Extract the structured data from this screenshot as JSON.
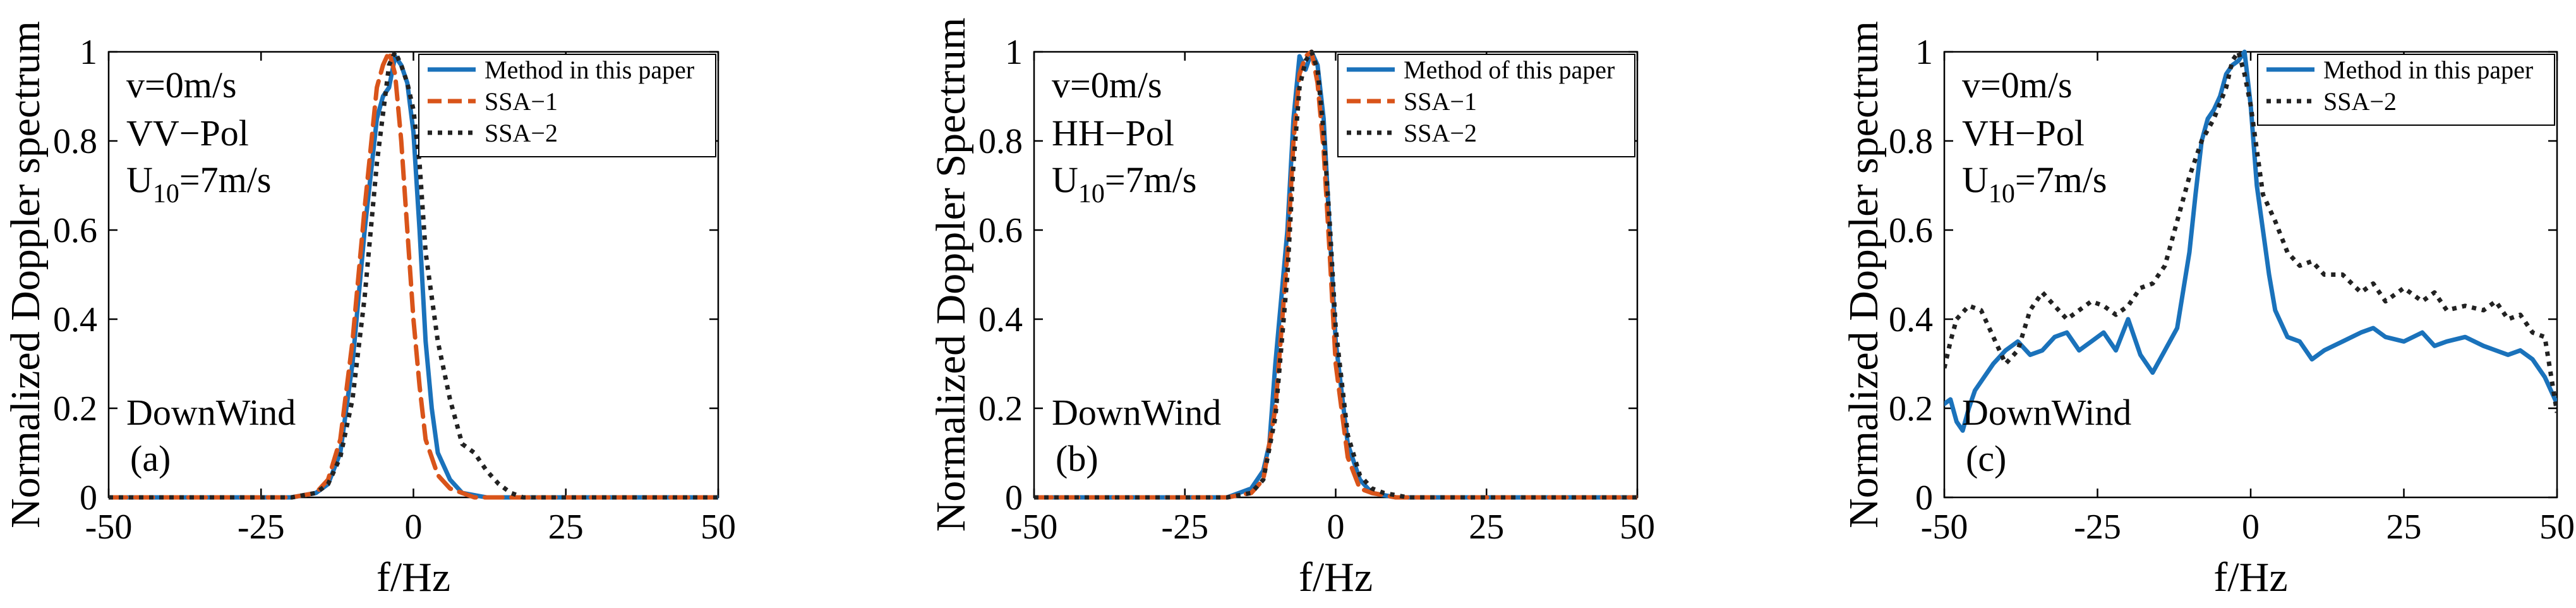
{
  "figure": {
    "colors": {
      "method": "#1a72bb",
      "ssa1": "#d9541a",
      "ssa2": "#222222",
      "axis": "#000000"
    },
    "series_styles": [
      {
        "key": "method",
        "dash": ""
      },
      {
        "key": "ssa1",
        "dash": "28,14"
      },
      {
        "key": "ssa2",
        "dash": "7,9"
      }
    ]
  },
  "chart_data": [
    {
      "id": "a",
      "type": "line",
      "title": "",
      "xlabel": "f/Hz",
      "ylabel": "Normalized Doppler spectrum",
      "xlim": [
        -50,
        50
      ],
      "ylim": [
        0,
        1
      ],
      "xticks": [
        "-50",
        "-25",
        "0",
        "25",
        "50"
      ],
      "xtick_values": [
        -50,
        -25,
        0,
        25,
        50
      ],
      "yticks": [
        "0",
        "0.2",
        "0.4",
        "0.6",
        "0.8",
        "1"
      ],
      "ytick_values": [
        0,
        0.2,
        0.4,
        0.6,
        0.8,
        1
      ],
      "annotations": {
        "velocity": "v=0m/s",
        "pol": "VV−Pol",
        "wind_base": "U",
        "wind_sub": "10",
        "wind_rest": "=7m/s",
        "direction": "DownWind",
        "panel": "(a)"
      },
      "legend": [
        "Method in this paper",
        "SSA−1",
        "SSA−2"
      ],
      "legend_position": "top-right",
      "series": [
        {
          "name": "Method in this paper",
          "style": "method",
          "x": [
            -50,
            -20,
            -16,
            -14,
            -12,
            -10,
            -8,
            -6,
            -5,
            -4,
            -3,
            -2,
            -1,
            0,
            1,
            2,
            3,
            4,
            6,
            8,
            12,
            50
          ],
          "y": [
            0,
            0,
            0.01,
            0.03,
            0.1,
            0.3,
            0.6,
            0.85,
            0.9,
            0.92,
            0.99,
            0.97,
            0.93,
            0.82,
            0.6,
            0.35,
            0.2,
            0.1,
            0.04,
            0.01,
            0,
            0
          ]
        },
        {
          "name": "SSA−1",
          "style": "ssa1",
          "x": [
            -50,
            -20,
            -16,
            -14,
            -12,
            -10,
            -8,
            -6,
            -5,
            -4,
            -3,
            -2,
            -1,
            0,
            1,
            2,
            4,
            6,
            10,
            50
          ],
          "y": [
            0,
            0,
            0.01,
            0.04,
            0.13,
            0.35,
            0.65,
            0.92,
            0.97,
            1,
            0.95,
            0.8,
            0.6,
            0.4,
            0.25,
            0.13,
            0.05,
            0.02,
            0,
            0
          ]
        },
        {
          "name": "SSA−2",
          "style": "ssa2",
          "x": [
            -50,
            -20,
            -16,
            -14,
            -12,
            -10,
            -8,
            -6,
            -4,
            -3,
            -2,
            -1,
            0,
            1,
            2,
            4,
            6,
            8,
            10,
            12,
            14,
            16,
            18,
            50
          ],
          "y": [
            0,
            0,
            0.01,
            0.03,
            0.09,
            0.22,
            0.45,
            0.75,
            0.97,
            1,
            0.97,
            0.93,
            0.87,
            0.75,
            0.55,
            0.35,
            0.22,
            0.12,
            0.1,
            0.06,
            0.03,
            0.01,
            0,
            0
          ]
        }
      ]
    },
    {
      "id": "b",
      "type": "line",
      "title": "",
      "xlabel": "f/Hz",
      "ylabel": "Normalized Doppler Spectrum",
      "xlim": [
        -50,
        50
      ],
      "ylim": [
        0,
        1
      ],
      "xticks": [
        "-50",
        "-25",
        "0",
        "25",
        "50"
      ],
      "xtick_values": [
        -50,
        -25,
        0,
        25,
        50
      ],
      "yticks": [
        "0",
        "0.2",
        "0.4",
        "0.6",
        "0.8",
        "1"
      ],
      "ytick_values": [
        0,
        0.2,
        0.4,
        0.6,
        0.8,
        1
      ],
      "annotations": {
        "velocity": "v=0m/s",
        "pol": "HH−Pol",
        "wind_base": "U",
        "wind_sub": "10",
        "wind_rest": "=7m/s",
        "direction": "DownWind",
        "panel": "(b)"
      },
      "legend": [
        "Method of this paper",
        "SSA−1",
        "SSA−2"
      ],
      "legend_position": "top-right",
      "series": [
        {
          "name": "Method of this paper",
          "style": "method",
          "x": [
            -50,
            -18,
            -14,
            -12,
            -11,
            -10,
            -8,
            -7,
            -6,
            -5,
            -4,
            -3,
            -2,
            -1,
            0,
            2,
            4,
            6,
            10,
            50
          ],
          "y": [
            0,
            0,
            0.02,
            0.06,
            0.12,
            0.3,
            0.6,
            0.85,
            0.99,
            0.96,
            1,
            0.97,
            0.85,
            0.6,
            0.35,
            0.12,
            0.04,
            0.01,
            0,
            0
          ]
        },
        {
          "name": "SSA−1",
          "style": "ssa1",
          "x": [
            -50,
            -18,
            -14,
            -12,
            -10,
            -8,
            -7,
            -6,
            -5,
            -4,
            -3,
            -2,
            -1,
            0,
            2,
            4,
            6,
            10,
            50
          ],
          "y": [
            0,
            0,
            0.01,
            0.04,
            0.2,
            0.55,
            0.8,
            0.95,
            0.99,
            1,
            0.93,
            0.78,
            0.55,
            0.3,
            0.09,
            0.02,
            0.01,
            0,
            0
          ]
        },
        {
          "name": "SSA−2",
          "style": "ssa2",
          "x": [
            -50,
            -18,
            -14,
            -12,
            -10,
            -8,
            -7,
            -6,
            -5,
            -4,
            -3,
            -2,
            -1,
            0,
            2,
            4,
            6,
            8,
            12,
            50
          ],
          "y": [
            0,
            0,
            0.01,
            0.04,
            0.18,
            0.5,
            0.75,
            0.92,
            0.98,
            1,
            0.96,
            0.82,
            0.62,
            0.38,
            0.14,
            0.05,
            0.02,
            0.01,
            0,
            0
          ]
        }
      ]
    },
    {
      "id": "c",
      "type": "line",
      "title": "",
      "xlabel": "f/Hz",
      "ylabel": "Normalized Doppler spectrum",
      "xlim": [
        -50,
        50
      ],
      "ylim": [
        0,
        1
      ],
      "xticks": [
        "-50",
        "-25",
        "0",
        "25",
        "50"
      ],
      "xtick_values": [
        -50,
        -25,
        0,
        25,
        50
      ],
      "yticks": [
        "0",
        "0.2",
        "0.4",
        "0.6",
        "0.8",
        "1"
      ],
      "ytick_values": [
        0,
        0.2,
        0.4,
        0.6,
        0.8,
        1
      ],
      "annotations": {
        "velocity": "v=0m/s",
        "pol": "VH−Pol",
        "wind_base": "U",
        "wind_sub": "10",
        "wind_rest": "=7m/s",
        "direction": "DownWind",
        "panel": "(c)"
      },
      "legend": [
        "Method in this paper",
        "SSA−2"
      ],
      "legend_position": "top-right",
      "series": [
        {
          "name": "Method in this paper",
          "style": "method",
          "x": [
            -50,
            -49,
            -48,
            -47,
            -46,
            -45,
            -44,
            -42,
            -40,
            -38,
            -36,
            -34,
            -32,
            -30,
            -28,
            -26,
            -24,
            -22,
            -20,
            -18,
            -16,
            -14,
            -12,
            -10,
            -9,
            -8,
            -7,
            -6,
            -5,
            -4,
            -3,
            -2,
            -1,
            0,
            1,
            2,
            3,
            4,
            6,
            8,
            10,
            12,
            15,
            18,
            20,
            22,
            25,
            28,
            30,
            32,
            35,
            38,
            40,
            42,
            44,
            46,
            48,
            50
          ],
          "y": [
            0.21,
            0.22,
            0.17,
            0.15,
            0.2,
            0.24,
            0.26,
            0.3,
            0.33,
            0.35,
            0.32,
            0.33,
            0.36,
            0.37,
            0.33,
            0.35,
            0.37,
            0.33,
            0.4,
            0.32,
            0.28,
            0.33,
            0.38,
            0.55,
            0.68,
            0.8,
            0.85,
            0.87,
            0.9,
            0.95,
            0.97,
            0.98,
            1,
            0.88,
            0.7,
            0.6,
            0.5,
            0.42,
            0.36,
            0.35,
            0.31,
            0.33,
            0.35,
            0.37,
            0.38,
            0.36,
            0.35,
            0.37,
            0.34,
            0.35,
            0.36,
            0.34,
            0.33,
            0.32,
            0.33,
            0.31,
            0.27,
            0.21
          ]
        },
        {
          "name": "SSA−2",
          "style": "ssa2",
          "x": [
            -50,
            -49,
            -48,
            -46,
            -44,
            -42,
            -40,
            -38,
            -36,
            -34,
            -32,
            -30,
            -28,
            -26,
            -24,
            -22,
            -20,
            -18,
            -16,
            -14,
            -12,
            -10,
            -8,
            -6,
            -4,
            -3,
            -2,
            -1,
            0,
            1,
            2,
            4,
            6,
            8,
            10,
            12,
            15,
            18,
            20,
            22,
            25,
            28,
            30,
            32,
            35,
            38,
            40,
            42,
            44,
            46,
            48,
            50
          ],
          "y": [
            0.29,
            0.35,
            0.4,
            0.43,
            0.42,
            0.36,
            0.3,
            0.33,
            0.42,
            0.46,
            0.43,
            0.4,
            0.42,
            0.44,
            0.43,
            0.41,
            0.43,
            0.47,
            0.48,
            0.52,
            0.62,
            0.72,
            0.8,
            0.85,
            0.92,
            0.98,
            1.0,
            0.95,
            0.88,
            0.78,
            0.68,
            0.62,
            0.55,
            0.52,
            0.53,
            0.5,
            0.5,
            0.46,
            0.48,
            0.44,
            0.47,
            0.44,
            0.46,
            0.42,
            0.43,
            0.42,
            0.44,
            0.4,
            0.41,
            0.37,
            0.36,
            0.19
          ]
        }
      ]
    }
  ]
}
